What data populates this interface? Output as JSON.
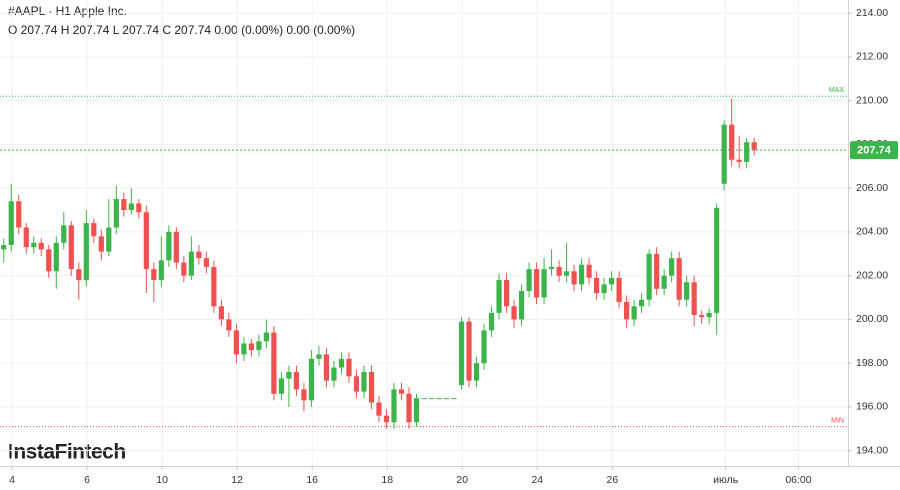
{
  "chart_data": {
    "type": "candlestick",
    "title": "#AAPL · H1 Apple Inc.",
    "subtitle": "O 207.74 H 207.74 L 207.74 C 207.74 0.00 (0.00%) 0.00 (0.00%)",
    "brand": "InstaFintech",
    "up_color": "#3bb54a",
    "down_color": "#f0504f",
    "grid": true,
    "x": [
      0.5,
      1.5,
      2.5,
      3.5,
      4.5,
      5.5,
      6.5,
      7.5,
      8.5,
      9.5,
      10.5,
      11.5,
      12.5,
      13.5,
      14.5,
      15.5,
      16.5,
      17.5,
      18.5,
      19.5,
      20.5,
      21.5,
      22.5,
      23.5,
      24.5,
      25.5,
      26.5,
      27.5,
      28.5,
      29.5,
      30.5,
      31.5,
      32.5,
      33.5,
      34.5,
      35.5,
      36.5,
      37.5,
      38.5,
      39.5,
      40.5,
      41.5,
      42.5,
      43.5,
      44.5,
      45.5,
      46.5,
      47.5,
      48.5,
      49.5,
      50.5,
      51.5,
      52.5,
      53.5,
      54.5,
      55.5,
      56.5,
      57.5,
      58.5,
      59.5,
      60.5,
      61.5,
      62.5,
      63.5,
      64.5,
      65.5,
      66.5,
      67.5,
      68.5,
      69.5,
      70.5,
      71.5,
      72.5,
      73.5,
      74.5,
      75.5,
      76.5,
      77.5,
      78.5,
      79.5,
      80.5,
      81.5,
      82.5,
      83.5,
      84.5,
      85.5,
      86.5,
      87.5,
      88.5,
      89.5,
      90.5,
      91.5,
      92.5,
      93.5,
      94.5,
      95.5,
      96.5,
      97.5,
      98.5,
      99.5,
      100.5
    ],
    "open": [
      203.2,
      203.4,
      205.4,
      204.2,
      203.3,
      203.5,
      203.2,
      202.2,
      203.5,
      204.3,
      202.3,
      201.8,
      204.4,
      203.8,
      203.1,
      204.2,
      205.5,
      205.0,
      205.3,
      204.9,
      202.3,
      201.8,
      202.7,
      204.0,
      202.6,
      202.0,
      203.1,
      202.8,
      202.4,
      200.6,
      200.0,
      199.5,
      198.4,
      198.9,
      198.6,
      199.0,
      199.4,
      196.6,
      197.3,
      197.6,
      196.8,
      196.3,
      198.2,
      198.4,
      197.2,
      197.8,
      198.2,
      197.4,
      196.7,
      197.6,
      196.2,
      195.6,
      195.3,
      196.8,
      196.6,
      195.3,
      196.4,
      196.4,
      196.4,
      196.4,
      196.4,
      197.0,
      199.9,
      197.2,
      198.0,
      199.5,
      200.3,
      201.8,
      200.6,
      200.0,
      201.3,
      202.3,
      201.0,
      202.3,
      202.4,
      202.0,
      202.2,
      201.6,
      202.5,
      201.9,
      201.2,
      201.6,
      201.9,
      200.8,
      200.0,
      200.6,
      200.9,
      203.0,
      201.4,
      202.0,
      202.8,
      200.9,
      201.7,
      200.2,
      200.1,
      200.3,
      206.2,
      208.9,
      207.3,
      207.2,
      208.1
    ],
    "high": [
      203.7,
      206.2,
      205.7,
      204.4,
      203.8,
      203.7,
      203.4,
      203.8,
      204.9,
      204.5,
      202.6,
      205.0,
      204.6,
      204.1,
      205.5,
      206.1,
      205.8,
      206.0,
      205.5,
      205.2,
      202.6,
      203.8,
      204.3,
      204.2,
      202.9,
      203.8,
      203.4,
      203.1,
      202.7,
      200.9,
      200.3,
      199.8,
      199.2,
      199.1,
      199.3,
      200.0,
      199.7,
      197.6,
      197.9,
      197.9,
      197.1,
      198.6,
      198.8,
      198.7,
      198.1,
      198.5,
      198.5,
      197.7,
      197.9,
      197.9,
      196.5,
      195.9,
      197.1,
      197.1,
      196.9,
      196.6,
      196.4,
      196.4,
      196.4,
      196.4,
      196.4,
      200.1,
      200.1,
      198.3,
      199.8,
      200.6,
      202.1,
      202.1,
      200.9,
      201.6,
      202.6,
      202.6,
      202.8,
      203.2,
      202.7,
      203.5,
      202.5,
      202.8,
      202.8,
      202.2,
      201.9,
      202.2,
      202.2,
      201.1,
      200.9,
      201.2,
      203.2,
      203.3,
      202.3,
      203.1,
      203.1,
      202.0,
      202.0,
      200.4,
      200.5,
      205.3,
      209.1,
      210.1,
      208.4,
      208.3,
      208.3
    ],
    "low": [
      202.6,
      203.1,
      203.9,
      203.0,
      203.0,
      202.9,
      201.9,
      201.4,
      203.2,
      202.0,
      200.9,
      201.5,
      203.5,
      202.7,
      202.9,
      203.9,
      204.7,
      204.8,
      204.6,
      201.2,
      200.8,
      201.5,
      202.4,
      202.3,
      201.7,
      201.8,
      202.5,
      202.1,
      200.3,
      199.7,
      199.2,
      198.0,
      198.1,
      198.3,
      198.3,
      198.7,
      196.3,
      196.3,
      196.0,
      196.5,
      195.8,
      196.0,
      197.9,
      196.9,
      196.9,
      197.5,
      197.1,
      196.4,
      196.4,
      195.9,
      195.3,
      195.0,
      195.0,
      196.3,
      195.0,
      195.1,
      196.4,
      196.4,
      196.4,
      196.4,
      196.4,
      196.8,
      196.9,
      196.9,
      197.7,
      199.2,
      200.0,
      200.3,
      199.6,
      199.7,
      201.0,
      200.7,
      200.7,
      202.0,
      201.7,
      201.7,
      201.3,
      201.3,
      201.6,
      200.9,
      200.9,
      201.3,
      200.5,
      199.6,
      199.7,
      200.3,
      200.6,
      201.1,
      201.1,
      201.7,
      200.6,
      200.6,
      199.7,
      199.8,
      199.8,
      199.3,
      205.9,
      207.0,
      206.9,
      206.9,
      207.5
    ],
    "close": [
      203.4,
      205.4,
      204.2,
      203.3,
      203.5,
      203.2,
      202.2,
      203.5,
      204.3,
      202.3,
      201.8,
      204.4,
      203.8,
      203.1,
      204.2,
      205.5,
      205.0,
      205.3,
      204.9,
      202.3,
      201.8,
      202.7,
      204.0,
      202.6,
      202.0,
      203.1,
      202.8,
      202.4,
      200.6,
      200.0,
      199.5,
      198.4,
      198.9,
      198.6,
      199.0,
      199.4,
      196.6,
      197.3,
      197.6,
      196.8,
      196.3,
      198.2,
      198.4,
      197.2,
      197.8,
      198.2,
      197.4,
      196.7,
      197.6,
      196.2,
      195.6,
      195.3,
      196.8,
      196.6,
      195.3,
      196.4,
      196.4,
      196.4,
      196.4,
      196.4,
      196.4,
      199.9,
      197.2,
      198.0,
      199.5,
      200.3,
      201.8,
      200.6,
      200.0,
      201.3,
      202.3,
      201.0,
      202.3,
      202.4,
      202.0,
      202.2,
      201.6,
      202.5,
      201.9,
      201.2,
      201.6,
      201.9,
      200.8,
      200.0,
      200.6,
      200.9,
      203.0,
      201.4,
      202.0,
      202.8,
      200.9,
      201.7,
      200.2,
      200.1,
      200.3,
      205.1,
      208.9,
      207.3,
      207.2,
      208.1,
      207.74
    ],
    "last_price": 207.74,
    "max_line": {
      "value": 210.2,
      "label": "MAX"
    },
    "min_line": {
      "value": 195.1,
      "label": "MIN"
    },
    "xlim": [
      0,
      113
    ],
    "xticks": [
      {
        "value": 1.6,
        "label": "4"
      },
      {
        "value": 11.6,
        "label": "6"
      },
      {
        "value": 21.6,
        "label": "10"
      },
      {
        "value": 31.6,
        "label": "12"
      },
      {
        "value": 41.6,
        "label": "16"
      },
      {
        "value": 51.6,
        "label": "18"
      },
      {
        "value": 61.6,
        "label": "20"
      },
      {
        "value": 71.6,
        "label": "24"
      },
      {
        "value": 81.6,
        "label": "26"
      },
      {
        "value": 96.7,
        "label": "июль"
      },
      {
        "value": 106.4,
        "label": "06:00"
      }
    ],
    "ylim": [
      193.3,
      214.6
    ],
    "yticks": [
      {
        "value": 194,
        "label": "194.00"
      },
      {
        "value": 196,
        "label": "196.00"
      },
      {
        "value": 198,
        "label": "198.00"
      },
      {
        "value": 200,
        "label": "200.00"
      },
      {
        "value": 202,
        "label": "202.00"
      },
      {
        "value": 204,
        "label": "204.00"
      },
      {
        "value": 206,
        "label": "206.00"
      },
      {
        "value": 208,
        "label": "208.00"
      },
      {
        "value": 210,
        "label": "210.00"
      },
      {
        "value": 212,
        "label": "212.00"
      },
      {
        "value": 214,
        "label": "214.00"
      }
    ]
  }
}
